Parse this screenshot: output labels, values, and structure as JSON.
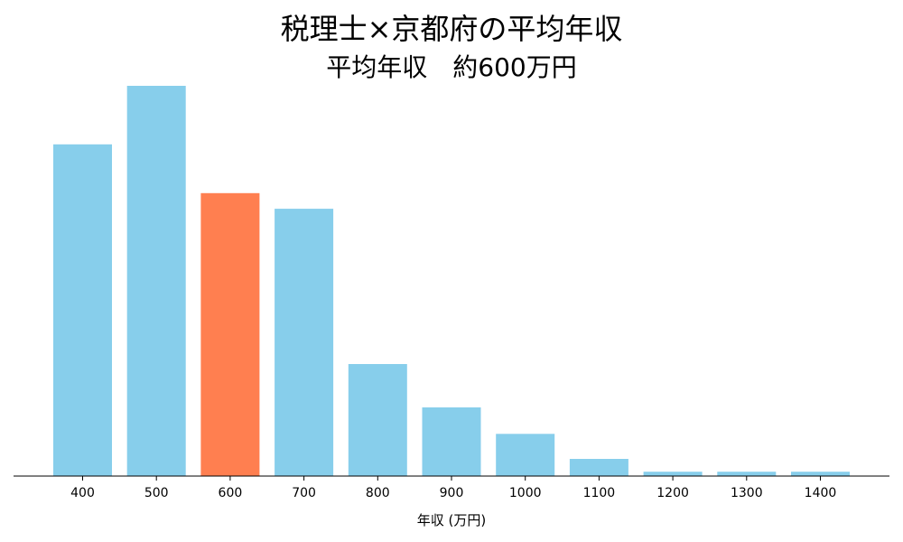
{
  "chart_data": {
    "type": "bar",
    "title": "税理士×京都府の平均年収",
    "subtitle": "平均年収　約600万円",
    "xlabel": "年収 (万円)",
    "ylabel": "",
    "categories": [
      "400",
      "500",
      "600",
      "700",
      "800",
      "900",
      "1000",
      "1100",
      "1200",
      "1300",
      "1400"
    ],
    "values": [
      85,
      100,
      72.5,
      68.5,
      28.7,
      17.6,
      10.8,
      4.4,
      1.1,
      1.1,
      1.1
    ],
    "highlight_category": "600",
    "ylim": [
      0,
      100
    ],
    "grid": false,
    "legend": "none",
    "colors": {
      "bar": "#87CEEB",
      "highlight": "#FF7F50",
      "axis": "#000000"
    }
  }
}
